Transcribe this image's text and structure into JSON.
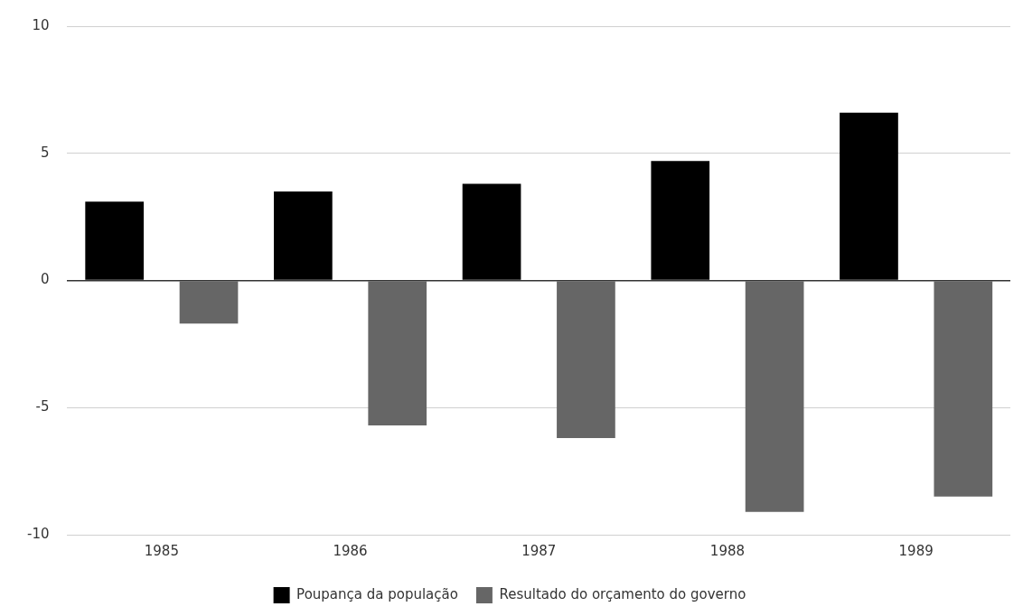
{
  "chart_data": {
    "type": "bar",
    "categories": [
      "1985",
      "1986",
      "1987",
      "1988",
      "1989"
    ],
    "series": [
      {
        "name": "Poupança da população",
        "color": "#000000",
        "values": [
          3.1,
          3.5,
          3.8,
          4.7,
          6.6
        ]
      },
      {
        "name": "Resultado do orçamento do governo",
        "color": "#666666",
        "values": [
          -1.7,
          -5.7,
          -6.2,
          -9.1,
          -8.5
        ]
      }
    ],
    "ylim": [
      -10,
      10
    ],
    "yticks": [
      -10,
      -5,
      0,
      5,
      10
    ],
    "grid": "y",
    "legend": "bottom"
  }
}
